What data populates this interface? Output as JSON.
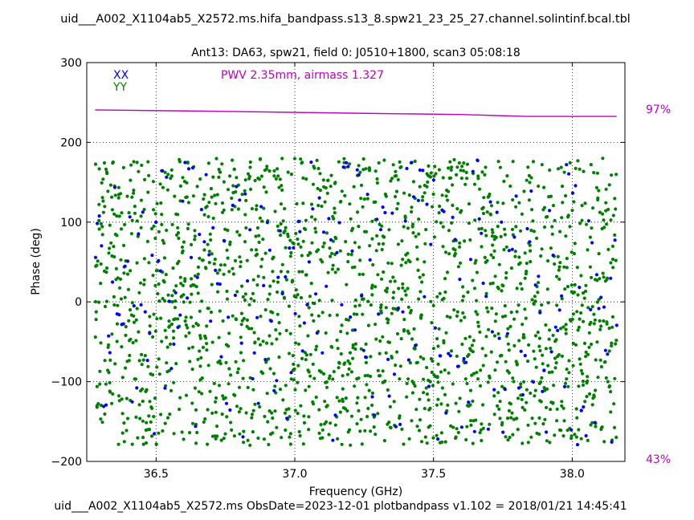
{
  "chart_data": {
    "type": "scatter",
    "title": "uid___A002_X1104ab5_X2572.ms.hifa_bandpass.s13_8.spw21_23_25_27.channel.solintinf.bcal.tbl",
    "subtitle": "Ant13: DA63,  spw21,  field 0: J0510+1800,  scan3  05:08:18",
    "xlabel": "Frequency (GHz)",
    "ylabel": "Phase (deg)",
    "xlim": [
      36.25,
      38.19
    ],
    "ylim": [
      -200,
      300
    ],
    "xticks": [
      36.5,
      37.0,
      37.5,
      38.0
    ],
    "xtick_labels": [
      "36.5",
      "37.0",
      "37.5",
      "38.0"
    ],
    "yticks": [
      -200,
      -100,
      0,
      100,
      200,
      300
    ],
    "ytick_labels": [
      "−200",
      "−100",
      "0",
      "100",
      "200",
      "300"
    ],
    "grid": true,
    "legend": {
      "placement": "top-left",
      "entries": [
        "XX",
        "YY"
      ]
    },
    "annotation": "PWV 2.35mm, airmass 1.327",
    "series": [
      {
        "name": "XX",
        "color": "#0000ff",
        "freq_start": 36.28,
        "freq_end": 38.16,
        "channels": 240,
        "phase_range": [
          -180,
          180
        ]
      },
      {
        "name": "YY",
        "color": "#007f00",
        "freq_start": 36.28,
        "freq_end": 38.16,
        "channels": 1920,
        "phase_range": [
          -180,
          180
        ]
      }
    ],
    "atm_transmission": {
      "color": "#bf00bf",
      "x": [
        36.28,
        36.7,
        37.2,
        37.6,
        37.84,
        38.0,
        38.16
      ],
      "y": [
        97,
        96.8,
        96.5,
        96.3,
        96.0,
        96.0,
        96.0
      ],
      "axis_top_label": "97%",
      "axis_bottom_label": "43%",
      "axis_top_value": 97,
      "axis_bottom_value": 43
    }
  },
  "footer": "uid___A002_X1104ab5_X2572.ms  ObsDate=2023-12-01   plotbandpass v1.102 = 2018/01/21 14:45:41",
  "colors": {
    "axes": "#000000",
    "grid": "#000000",
    "annotation": "#bf00bf"
  }
}
